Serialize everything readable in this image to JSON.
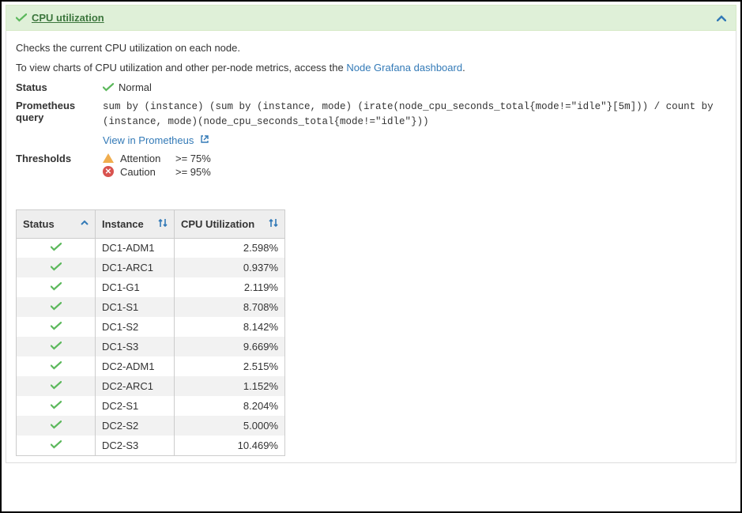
{
  "header": {
    "title": "CPU utilization"
  },
  "description": {
    "line1": "Checks the current CPU utilization on each node.",
    "line2_prefix": "To view charts of CPU utilization and other per-node metrics, access the ",
    "link_text": "Node Grafana dashboard",
    "line2_suffix": "."
  },
  "meta": {
    "status_label": "Status",
    "status_value": "Normal",
    "prom_label_line1": "Prometheus",
    "prom_label_line2": "query",
    "prom_query": "sum by (instance) (sum by (instance, mode) (irate(node_cpu_seconds_total{mode!=\"idle\"}[5m])) / count by (instance, mode)(node_cpu_seconds_total{mode!=\"idle\"}))",
    "view_prom": "View in Prometheus",
    "thresholds_label": "Thresholds",
    "thresholds": [
      {
        "level": "Attention",
        "op": ">= 75%"
      },
      {
        "level": "Caution",
        "op": ">= 95%"
      }
    ]
  },
  "table": {
    "cols": {
      "status": "Status",
      "instance": "Instance",
      "util": "CPU Utilization"
    },
    "rows": [
      {
        "instance": "DC1-ADM1",
        "util": "2.598%"
      },
      {
        "instance": "DC1-ARC1",
        "util": "0.937%"
      },
      {
        "instance": "DC1-G1",
        "util": "2.119%"
      },
      {
        "instance": "DC1-S1",
        "util": "8.708%"
      },
      {
        "instance": "DC1-S2",
        "util": "8.142%"
      },
      {
        "instance": "DC1-S3",
        "util": "9.669%"
      },
      {
        "instance": "DC2-ADM1",
        "util": "2.515%"
      },
      {
        "instance": "DC2-ARC1",
        "util": "1.152%"
      },
      {
        "instance": "DC2-S1",
        "util": "8.204%"
      },
      {
        "instance": "DC2-S2",
        "util": "5.000%"
      },
      {
        "instance": "DC2-S3",
        "util": "10.469%"
      }
    ]
  },
  "colors": {
    "header_bg": "#dff0d8",
    "header_text": "#3c763d",
    "link": "#337ab7",
    "check": "#5cb85c",
    "attention": "#f0ad4e",
    "caution": "#d9534f",
    "row_alt": "#f2f2f2",
    "th_bg": "#eeeeee",
    "border": "#cccccc"
  }
}
